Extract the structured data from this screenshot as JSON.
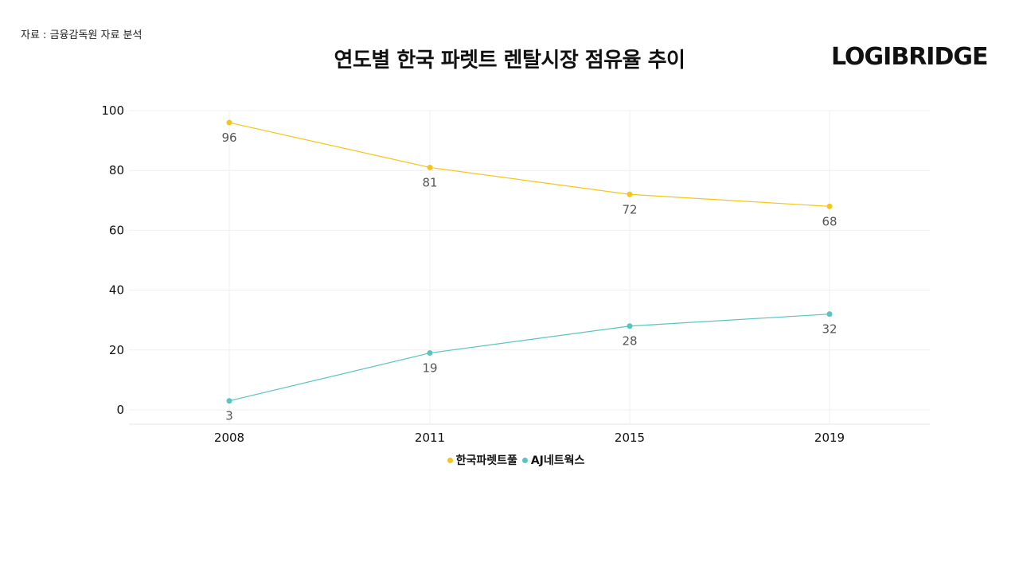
{
  "source_note": "자료 : 금융감독원 자료 분석",
  "logo_text": "LOGIBRIDGE",
  "chart_data": {
    "type": "line",
    "title": "연도별 한국 파렛트 렌탈시장 점유율 추이",
    "xlabel": "",
    "ylabel": "",
    "categories": [
      "2008",
      "2011",
      "2015",
      "2019"
    ],
    "ylim": [
      0,
      100
    ],
    "yticks": [
      0,
      20,
      40,
      60,
      80,
      100
    ],
    "grid": true,
    "legend_position": "bottom",
    "series": [
      {
        "name": "한국파렛트풀",
        "values": [
          96,
          81,
          72,
          68
        ],
        "color": "#F5C518"
      },
      {
        "name": "AJ네트웍스",
        "values": [
          3,
          19,
          28,
          32
        ],
        "color": "#5BC4BF"
      }
    ]
  }
}
